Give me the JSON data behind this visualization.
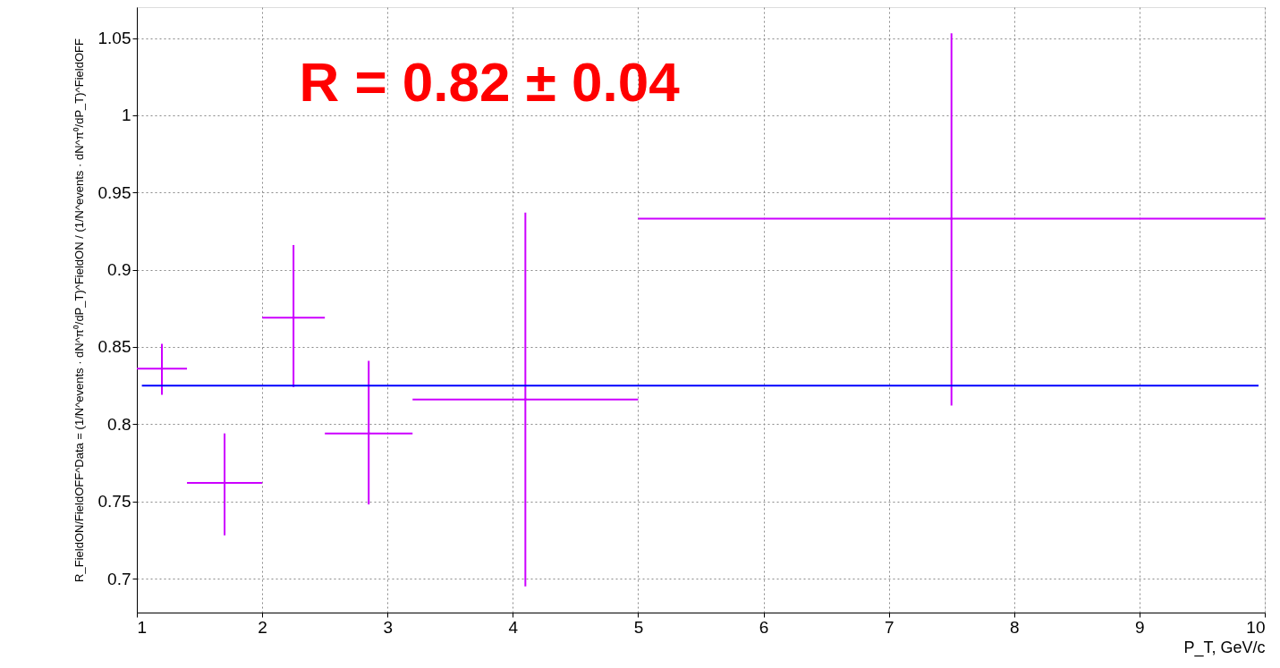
{
  "chart_data": {
    "type": "scatter",
    "xlabel": "P_T, GeV/c",
    "ylabel": "R_FieldON/FieldOFF^Data = (1/N^events · dN^π⁰/dP_T)^FieldON / (1/N^events · dN^π⁰/dP_T)^FieldOFF",
    "annotations": [
      "R = 0.82 ± 0.04"
    ],
    "xlim": [
      1,
      10
    ],
    "xticks": [
      1,
      2,
      3,
      4,
      5,
      6,
      7,
      8,
      9,
      10
    ],
    "ylim": [
      0.678,
      1.07
    ],
    "yticks": [
      0.7,
      0.75,
      0.8,
      0.85,
      0.9,
      0.95,
      1,
      1.05
    ],
    "grid": true,
    "series": [
      {
        "color": "#cc00ff",
        "x": [
          1.2,
          1.7,
          2.25,
          2.85,
          4.1,
          7.5
        ],
        "values": [
          0.836,
          0.762,
          0.869,
          0.794,
          0.816,
          0.933
        ],
        "errors": [
          [
            0.819,
            0.852
          ],
          [
            0.728,
            0.794
          ],
          [
            0.824,
            0.916
          ],
          [
            0.748,
            0.841
          ],
          [
            0.695,
            0.937
          ],
          [
            0.812,
            1.053
          ]
        ],
        "xerrors": [
          [
            1.0,
            1.4
          ],
          [
            1.4,
            2.0
          ],
          [
            2.0,
            2.5
          ],
          [
            2.5,
            3.2
          ],
          [
            3.2,
            5.0
          ],
          [
            5.0,
            10.0
          ]
        ]
      },
      {
        "type": "line",
        "color": "#0000ff",
        "x": [
          1.04,
          9.95
        ],
        "values": [
          0.825,
          0.825
        ]
      }
    ]
  }
}
